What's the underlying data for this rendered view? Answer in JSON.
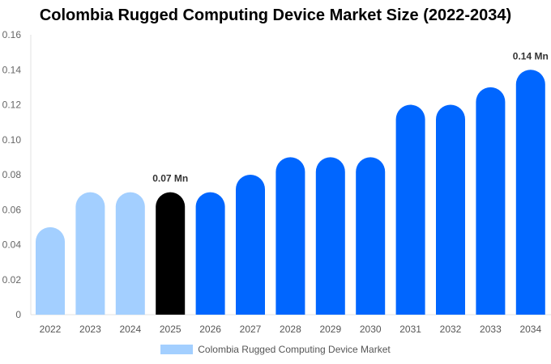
{
  "chart_data": {
    "type": "bar",
    "title": "Colombia Rugged Computing Device Market Size (2022-2034)",
    "categories": [
      "2022",
      "2023",
      "2024",
      "2025",
      "2026",
      "2027",
      "2028",
      "2029",
      "2030",
      "2031",
      "2032",
      "2033",
      "2034"
    ],
    "series": [
      {
        "name": "Colombia Rugged Computing Device Market",
        "values": [
          0.05,
          0.07,
          0.07,
          0.07,
          0.07,
          0.08,
          0.09,
          0.09,
          0.09,
          0.12,
          0.12,
          0.13,
          0.14
        ]
      }
    ],
    "bar_colors": [
      "#a3cfff",
      "#a3cfff",
      "#a3cfff",
      "#000000",
      "#0066ff",
      "#0066ff",
      "#0066ff",
      "#0066ff",
      "#0066ff",
      "#0066ff",
      "#0066ff",
      "#0066ff",
      "#0066ff"
    ],
    "annotations": [
      {
        "category": "2025",
        "text": "0.07 Mn"
      },
      {
        "category": "2034",
        "text": "0.14 Mn"
      }
    ],
    "yticks": [
      "0",
      "0.02",
      "0.04",
      "0.06",
      "0.08",
      "0.10",
      "0.12",
      "0.14",
      "0.16"
    ],
    "ylim": [
      0,
      0.16
    ],
    "xlabel": "",
    "ylabel": "",
    "grid": false,
    "legend_position": "bottom",
    "legend_color": "#a3cfff"
  }
}
